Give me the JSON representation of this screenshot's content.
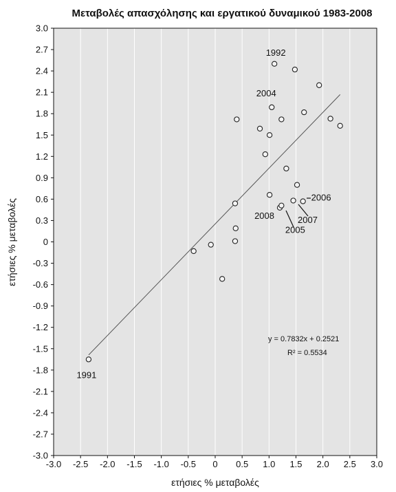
{
  "chart_data": {
    "type": "scatter",
    "title": "Μεταβολές απασχόλησης και εργατικού δυναμικού 1983-2008",
    "xlabel": "ετήσιες % μεταβολές",
    "ylabel": "ετήσιες % μεταβολές",
    "xlim": [
      -3.0,
      3.0
    ],
    "ylim": [
      -3.0,
      3.0
    ],
    "x_ticks": [
      "-3.0",
      "-2.5",
      "-2.0",
      "-1.5",
      "-1.0",
      "-0.5",
      "0",
      "0.5",
      "1.0",
      "1.5",
      "2.0",
      "2.5",
      "3.0"
    ],
    "y_ticks": [
      "3.0",
      "2.7",
      "2.4",
      "2.1",
      "1.8",
      "1.5",
      "1.2",
      "0.9",
      "0.6",
      "0.3",
      "0",
      "-0.3",
      "-0.6",
      "-0.9",
      "-1.2",
      "-1.5",
      "-1.8",
      "-2.1",
      "-2.4",
      "-2.7",
      "-3.0"
    ],
    "grid": "vertical",
    "background": "#e4e4e4",
    "points": [
      {
        "x": 1.1,
        "y": 2.5,
        "label": "1992"
      },
      {
        "x": 1.48,
        "y": 2.42
      },
      {
        "x": 1.93,
        "y": 2.2
      },
      {
        "x": 1.05,
        "y": 1.89,
        "label": "2004"
      },
      {
        "x": 1.65,
        "y": 1.82
      },
      {
        "x": 0.4,
        "y": 1.72
      },
      {
        "x": 1.23,
        "y": 1.72
      },
      {
        "x": 2.14,
        "y": 1.73
      },
      {
        "x": 2.32,
        "y": 1.63
      },
      {
        "x": 0.83,
        "y": 1.59
      },
      {
        "x": 1.01,
        "y": 1.5
      },
      {
        "x": 0.93,
        "y": 1.23
      },
      {
        "x": 1.32,
        "y": 1.03
      },
      {
        "x": 1.52,
        "y": 0.8
      },
      {
        "x": 1.01,
        "y": 0.66
      },
      {
        "x": 1.45,
        "y": 0.58
      },
      {
        "x": 1.63,
        "y": 0.57,
        "label": "2006"
      },
      {
        "x": 0.37,
        "y": 0.54
      },
      {
        "x": 1.2,
        "y": 0.48,
        "label": "2008"
      },
      {
        "x": 1.23,
        "y": 0.51,
        "label": "2005"
      },
      {
        "x": 0.38,
        "y": 0.19
      },
      {
        "x": 0.37,
        "y": 0.01
      },
      {
        "x": -0.08,
        "y": -0.04
      },
      {
        "x": -0.4,
        "y": -0.13
      },
      {
        "x": 0.13,
        "y": -0.52
      },
      {
        "x": -2.35,
        "y": -1.65,
        "label": "1991"
      }
    ],
    "annotations": [
      "2007"
    ],
    "trendline": {
      "slope": 0.7832,
      "intercept": 0.2521,
      "x_range": [
        -2.35,
        2.32
      ]
    },
    "equation": "y = 0.7832x + 0.2521",
    "r_squared": "R² = 0.5534"
  }
}
